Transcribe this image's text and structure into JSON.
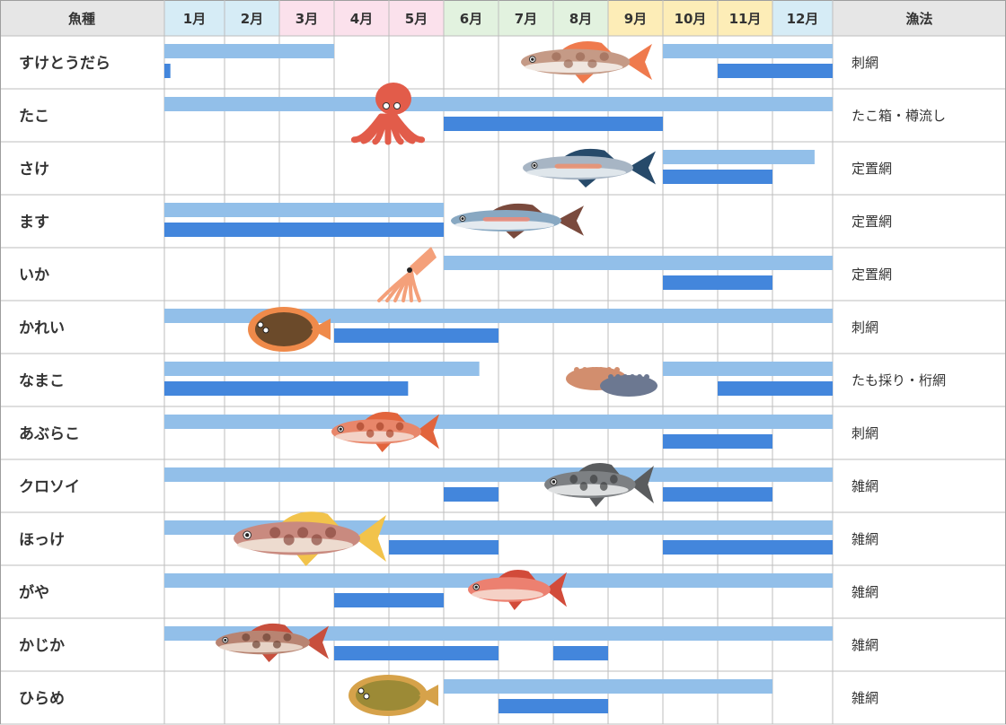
{
  "chart_data": {
    "type": "table",
    "header": {
      "fish_label": "魚種",
      "method_label": "漁法",
      "months": [
        "1月",
        "2月",
        "3月",
        "4月",
        "5月",
        "6月",
        "7月",
        "8月",
        "9月",
        "10月",
        "11月",
        "12月"
      ]
    },
    "colors": {
      "header_bg": "#e6e6e6",
      "season_light": "#92bfe9",
      "season_dark": "#4386dc",
      "grid": "#bdbdbd",
      "border": "#9e9e9e",
      "month_bg": {
        "winter": "#d6ecf6",
        "spring": "#fbe1ec",
        "summer": "#e2f2df",
        "autumn": "#fdedb7"
      }
    },
    "month_seasons": [
      "winter",
      "winter",
      "spring",
      "spring",
      "spring",
      "summer",
      "summer",
      "summer",
      "autumn",
      "autumn",
      "autumn",
      "winter"
    ],
    "rows": [
      {
        "name": "すけとうだら",
        "method": "刺網",
        "icon": "cod-icon",
        "light": [
          [
            1,
            3.0
          ],
          [
            10,
            12.0
          ]
        ],
        "dark": [
          [
            1,
            1.1
          ],
          [
            11,
            12.0
          ]
        ]
      },
      {
        "name": "たこ",
        "method": "たこ箱・樽流し",
        "icon": "octopus-icon",
        "light": [
          [
            1,
            12.0
          ]
        ],
        "dark": [
          [
            6,
            9.0
          ]
        ]
      },
      {
        "name": "さけ",
        "method": "定置網",
        "icon": "salmon-icon",
        "light": [
          [
            10,
            12.7
          ]
        ],
        "dark": [
          [
            10,
            11.0
          ]
        ]
      },
      {
        "name": "ます",
        "method": "定置網",
        "icon": "trout-icon",
        "light": [
          [
            1,
            5.0
          ]
        ],
        "dark": [
          [
            1,
            5.0
          ]
        ]
      },
      {
        "name": "いか",
        "method": "定置網",
        "icon": "squid-icon",
        "light": [
          [
            6,
            12.0
          ]
        ],
        "dark": [
          [
            10,
            11.0
          ]
        ]
      },
      {
        "name": "かれい",
        "method": "刺網",
        "icon": "flounder-icon",
        "light": [
          [
            1,
            12.0
          ]
        ],
        "dark": [
          [
            4,
            6.0
          ]
        ]
      },
      {
        "name": "なまこ",
        "method": "たも採り・桁網",
        "icon": "sea-cucumber-icon",
        "light": [
          [
            1,
            6.65
          ],
          [
            10,
            12.0
          ]
        ],
        "dark": [
          [
            1,
            5.35
          ],
          [
            11,
            12.0
          ]
        ]
      },
      {
        "name": "あぶらこ",
        "method": "刺網",
        "icon": "greenling-icon",
        "light": [
          [
            1,
            12.0
          ]
        ],
        "dark": [
          [
            10,
            11.0
          ]
        ]
      },
      {
        "name": "クロソイ",
        "method": "雑網",
        "icon": "rockfish-icon",
        "light": [
          [
            1,
            12.0
          ]
        ],
        "dark": [
          [
            6,
            6.0
          ],
          [
            10,
            11.0
          ]
        ]
      },
      {
        "name": "ほっけ",
        "method": "雑網",
        "icon": "atka-mackerel-icon",
        "light": [
          [
            1,
            12.0
          ]
        ],
        "dark": [
          [
            5,
            6.0
          ],
          [
            10,
            12.0
          ]
        ]
      },
      {
        "name": "がや",
        "method": "雑網",
        "icon": "redfish-icon",
        "light": [
          [
            1,
            12.0
          ]
        ],
        "dark": [
          [
            4,
            5.0
          ]
        ]
      },
      {
        "name": "かじか",
        "method": "雑網",
        "icon": "sculpin-icon",
        "light": [
          [
            1,
            12.0
          ]
        ],
        "dark": [
          [
            4,
            6.0
          ],
          [
            8,
            8.0
          ]
        ]
      },
      {
        "name": "ひらめ",
        "method": "雑網",
        "icon": "halibut-icon",
        "light": [
          [
            6,
            11.0
          ]
        ],
        "dark": [
          [
            7,
            8.0
          ]
        ]
      }
    ]
  }
}
